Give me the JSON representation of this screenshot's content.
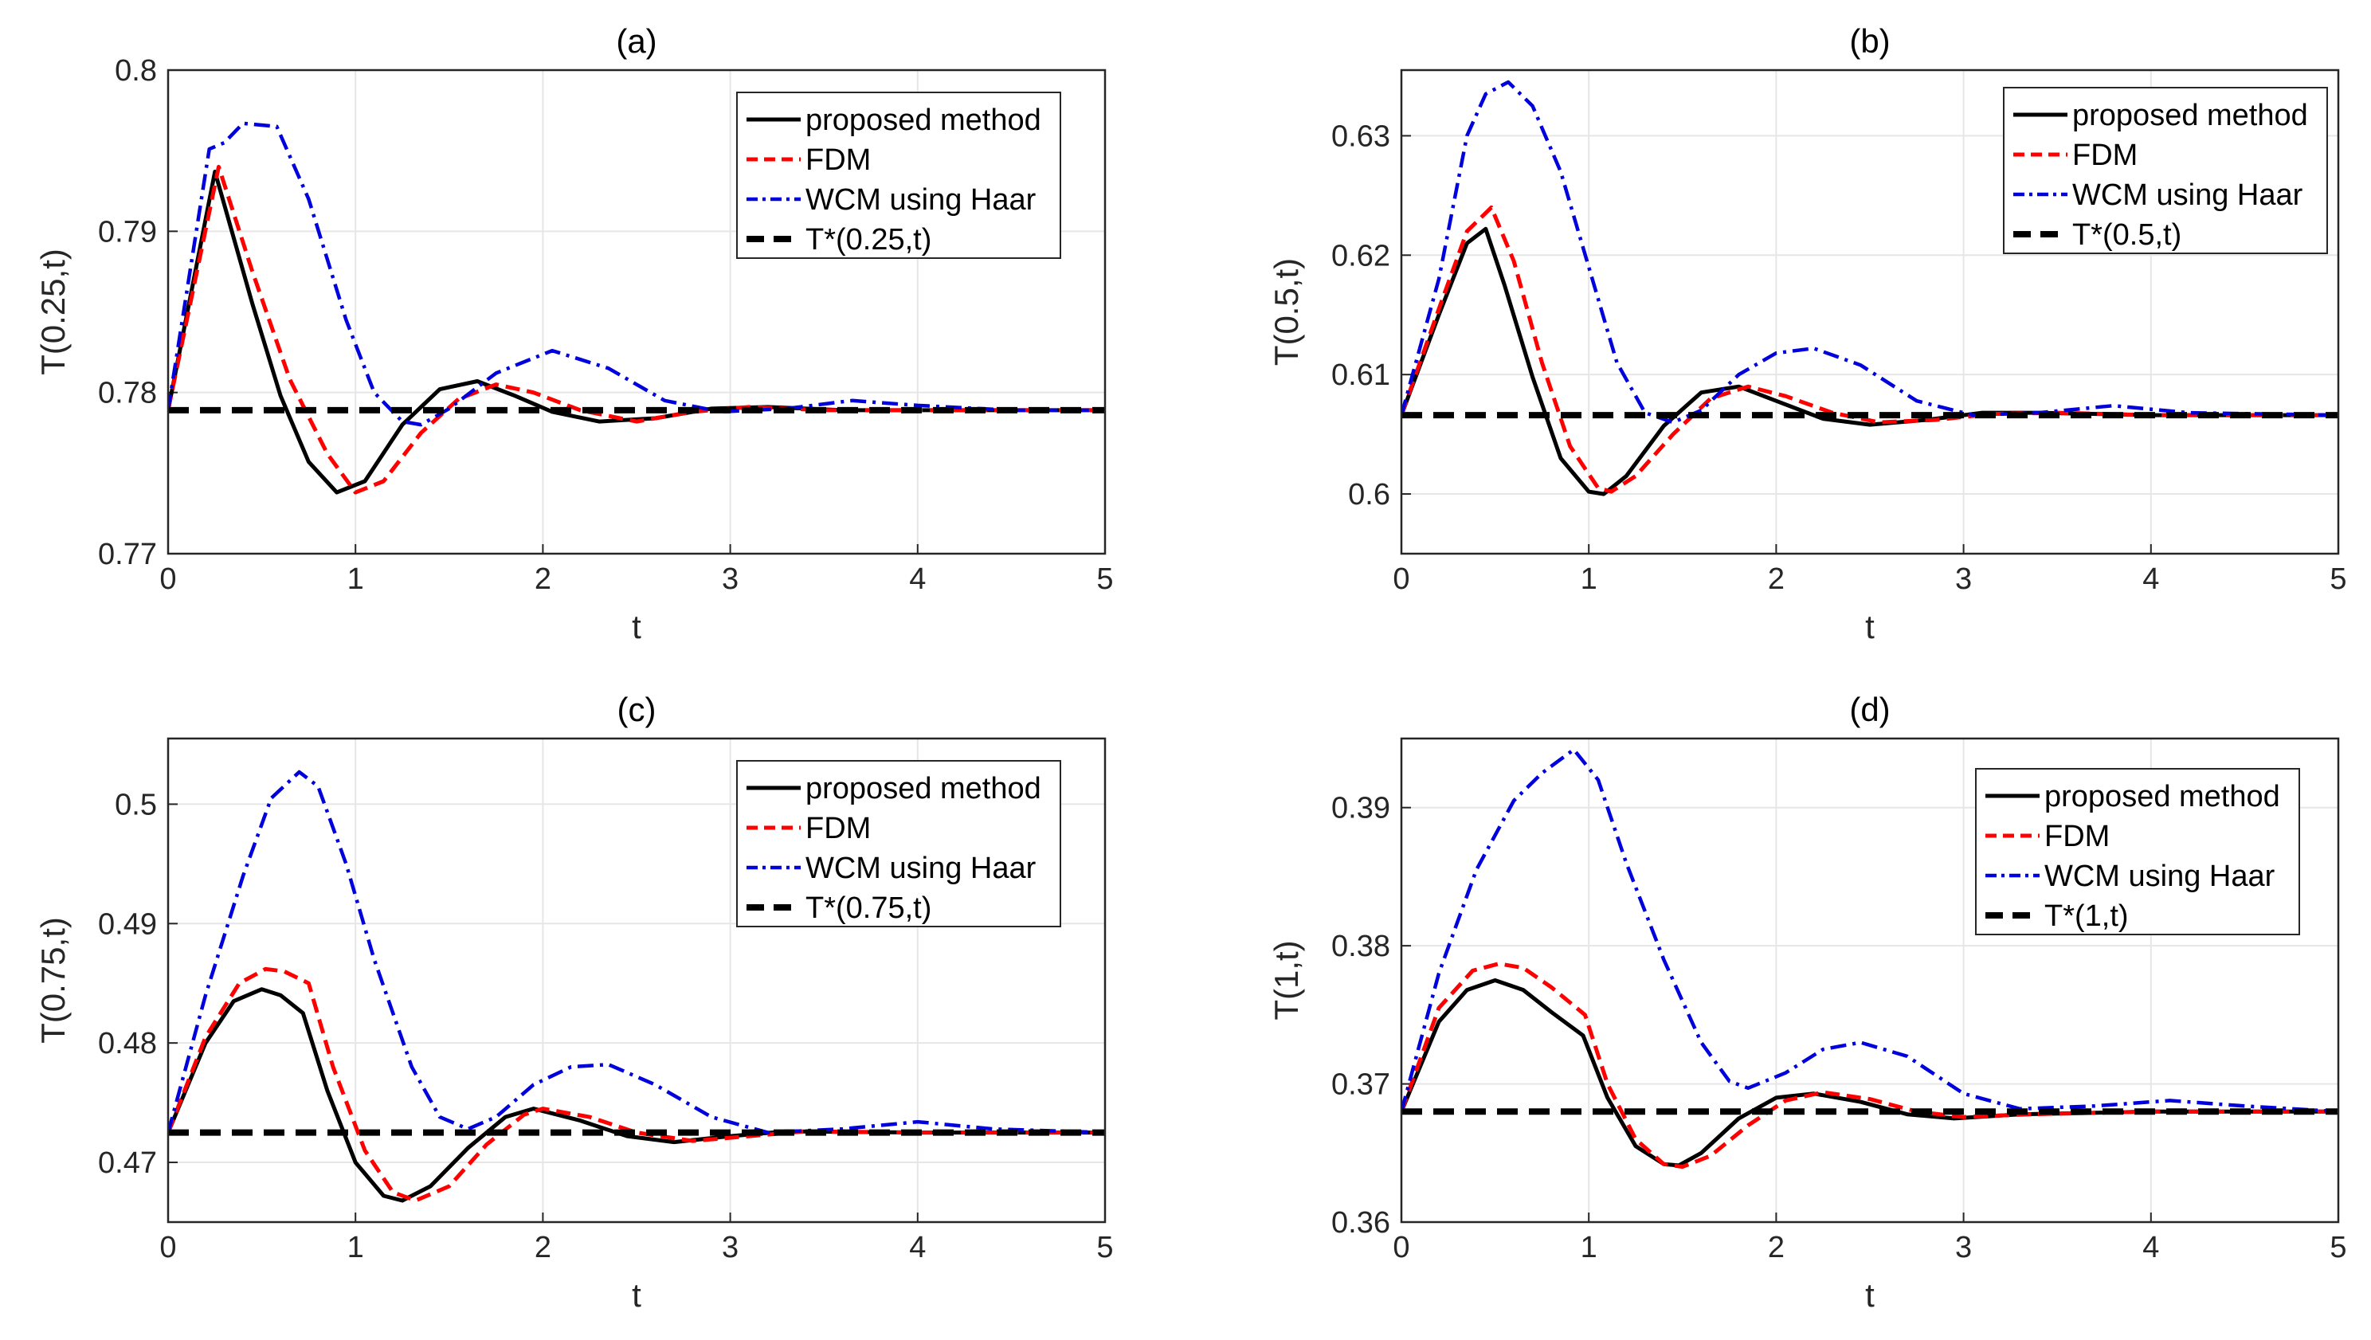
{
  "chart_data": [
    {
      "type": "line",
      "panel": "a",
      "title": "(a)",
      "xlabel": "t",
      "ylabel": "T(0.25,t)",
      "xlim": [
        0,
        5
      ],
      "ylim": [
        0.77,
        0.8
      ],
      "xticks": [
        "0",
        "1",
        "2",
        "3",
        "4",
        "5"
      ],
      "yticks": [
        "0.77",
        "0.78",
        "0.79",
        "0.8"
      ],
      "grid": true,
      "legend_position": "top-right",
      "series": [
        {
          "name": "proposed method",
          "color": "#000000",
          "style": "solid",
          "x": [
            0,
            0.25,
            0.45,
            0.6,
            0.75,
            0.9,
            1.05,
            1.25,
            1.45,
            1.65,
            1.85,
            2.05,
            2.3,
            2.6,
            2.9,
            3.2,
            3.6,
            4.0,
            5.0
          ],
          "y": [
            0.7789,
            0.7937,
            0.7855,
            0.7798,
            0.7757,
            0.7738,
            0.7745,
            0.778,
            0.7802,
            0.7807,
            0.7798,
            0.7788,
            0.7782,
            0.7784,
            0.779,
            0.7791,
            0.7789,
            0.7789,
            0.7789
          ]
        },
        {
          "name": "FDM",
          "color": "#ff0000",
          "style": "dashed",
          "x": [
            0,
            0.27,
            0.45,
            0.65,
            0.85,
            1.0,
            1.15,
            1.35,
            1.55,
            1.75,
            1.95,
            2.2,
            2.5,
            2.8,
            3.1,
            3.5,
            4.0,
            5.0
          ],
          "y": [
            0.7789,
            0.794,
            0.7875,
            0.7808,
            0.7762,
            0.7738,
            0.7745,
            0.7775,
            0.7796,
            0.7805,
            0.78,
            0.7789,
            0.7782,
            0.7788,
            0.7791,
            0.7789,
            0.7789,
            0.7789
          ]
        },
        {
          "name": "WCM using Haar",
          "color": "#0000dd",
          "style": "dashdot",
          "x": [
            0,
            0.22,
            0.3,
            0.4,
            0.58,
            0.75,
            0.95,
            1.1,
            1.25,
            1.35,
            1.5,
            1.75,
            2.05,
            2.35,
            2.65,
            2.95,
            3.3,
            3.65,
            4.0,
            4.5,
            5.0
          ],
          "y": [
            0.7789,
            0.7951,
            0.7955,
            0.7967,
            0.7965,
            0.792,
            0.7845,
            0.78,
            0.7782,
            0.778,
            0.779,
            0.7812,
            0.7826,
            0.7815,
            0.7795,
            0.7788,
            0.779,
            0.7795,
            0.7792,
            0.7789,
            0.7789
          ]
        },
        {
          "name": "T*(0.25,t)",
          "color": "#000000",
          "style": "bigdash",
          "x": [
            0,
            5
          ],
          "y": [
            0.7789,
            0.7789
          ]
        }
      ]
    },
    {
      "type": "line",
      "panel": "b",
      "title": "(b)",
      "xlabel": "t",
      "ylabel": "T(0.5,t)",
      "xlim": [
        0,
        5
      ],
      "ylim": [
        0.595,
        0.6355
      ],
      "xticks": [
        "0",
        "1",
        "2",
        "3",
        "4",
        "5"
      ],
      "yticks": [
        "0.6",
        "0.61",
        "0.62",
        "0.63"
      ],
      "ytick_values": [
        0.6,
        0.61,
        0.62,
        0.63
      ],
      "grid": true,
      "legend_position": "top-right",
      "series": [
        {
          "name": "proposed method",
          "color": "#000000",
          "style": "solid",
          "x": [
            0,
            0.2,
            0.35,
            0.45,
            0.55,
            0.7,
            0.85,
            1.0,
            1.08,
            1.2,
            1.4,
            1.6,
            1.8,
            2.0,
            2.25,
            2.5,
            2.8,
            3.1,
            3.4,
            4.0,
            5.0
          ],
          "y": [
            0.6066,
            0.615,
            0.621,
            0.6222,
            0.6175,
            0.6098,
            0.603,
            0.6002,
            0.6,
            0.6015,
            0.6057,
            0.6085,
            0.609,
            0.6078,
            0.6063,
            0.6058,
            0.6062,
            0.6068,
            0.6068,
            0.6066,
            0.6066
          ]
        },
        {
          "name": "FDM",
          "color": "#ff0000",
          "style": "dashed",
          "x": [
            0,
            0.2,
            0.35,
            0.48,
            0.6,
            0.75,
            0.9,
            1.05,
            1.12,
            1.25,
            1.45,
            1.65,
            1.85,
            2.05,
            2.3,
            2.55,
            2.85,
            3.15,
            3.5,
            4.0,
            5.0
          ],
          "y": [
            0.6066,
            0.6155,
            0.622,
            0.624,
            0.6195,
            0.611,
            0.604,
            0.6005,
            0.6002,
            0.6015,
            0.605,
            0.608,
            0.609,
            0.6082,
            0.6068,
            0.606,
            0.6062,
            0.6067,
            0.6068,
            0.6066,
            0.6066
          ]
        },
        {
          "name": "WCM using Haar",
          "color": "#0000dd",
          "style": "dashdot",
          "x": [
            0,
            0.2,
            0.35,
            0.45,
            0.57,
            0.7,
            0.85,
            1.0,
            1.15,
            1.3,
            1.45,
            1.6,
            1.8,
            2.0,
            2.2,
            2.45,
            2.75,
            3.05,
            3.4,
            3.8,
            4.2,
            5.0
          ],
          "y": [
            0.6066,
            0.618,
            0.63,
            0.6335,
            0.6345,
            0.6325,
            0.627,
            0.619,
            0.611,
            0.6068,
            0.606,
            0.607,
            0.61,
            0.6118,
            0.6122,
            0.6108,
            0.6078,
            0.6066,
            0.6068,
            0.6074,
            0.6068,
            0.6066
          ]
        },
        {
          "name": "T*(0.5,t)",
          "color": "#000000",
          "style": "bigdash",
          "x": [
            0,
            5
          ],
          "y": [
            0.6066,
            0.6066
          ]
        }
      ]
    },
    {
      "type": "line",
      "panel": "c",
      "title": "(c)",
      "xlabel": "t",
      "ylabel": "T(0.75,t)",
      "xlim": [
        0,
        5
      ],
      "ylim": [
        0.465,
        0.5055
      ],
      "xticks": [
        "0",
        "1",
        "2",
        "3",
        "4",
        "5"
      ],
      "yticks": [
        "0.47",
        "0.48",
        "0.49",
        "0.5"
      ],
      "ytick_values": [
        0.47,
        0.48,
        0.49,
        0.5
      ],
      "grid": true,
      "legend_position": "top-right",
      "series": [
        {
          "name": "proposed method",
          "color": "#000000",
          "style": "solid",
          "x": [
            0,
            0.2,
            0.35,
            0.5,
            0.6,
            0.72,
            0.85,
            1.0,
            1.15,
            1.25,
            1.4,
            1.6,
            1.8,
            1.95,
            2.2,
            2.45,
            2.7,
            3.0,
            3.3,
            4.0,
            5.0
          ],
          "y": [
            0.4725,
            0.48,
            0.4835,
            0.4845,
            0.484,
            0.4825,
            0.476,
            0.47,
            0.4672,
            0.4668,
            0.468,
            0.4712,
            0.4738,
            0.4745,
            0.4735,
            0.4722,
            0.4717,
            0.4722,
            0.4726,
            0.4725,
            0.4725
          ]
        },
        {
          "name": "FDM",
          "color": "#ff0000",
          "style": "dashed",
          "x": [
            0,
            0.2,
            0.38,
            0.52,
            0.62,
            0.75,
            0.88,
            1.05,
            1.2,
            1.32,
            1.5,
            1.7,
            1.9,
            2.0,
            2.25,
            2.5,
            2.8,
            3.1,
            3.4,
            4.0,
            5.0
          ],
          "y": [
            0.4725,
            0.4805,
            0.485,
            0.4862,
            0.486,
            0.485,
            0.478,
            0.471,
            0.4675,
            0.4668,
            0.468,
            0.4715,
            0.474,
            0.4745,
            0.4738,
            0.4725,
            0.4718,
            0.4722,
            0.4726,
            0.4725,
            0.4725
          ]
        },
        {
          "name": "WCM using Haar",
          "color": "#0000dd",
          "style": "dashdot",
          "x": [
            0,
            0.2,
            0.4,
            0.55,
            0.7,
            0.8,
            0.95,
            1.1,
            1.3,
            1.45,
            1.6,
            1.75,
            1.95,
            2.15,
            2.35,
            2.6,
            2.9,
            3.2,
            3.6,
            4.0,
            4.4,
            5.0
          ],
          "y": [
            0.4725,
            0.484,
            0.494,
            0.5005,
            0.5027,
            0.5015,
            0.495,
            0.487,
            0.478,
            0.4738,
            0.4728,
            0.4738,
            0.4765,
            0.478,
            0.4782,
            0.4765,
            0.4738,
            0.4725,
            0.4728,
            0.4734,
            0.4728,
            0.4725
          ]
        },
        {
          "name": "T*(0.75,t)",
          "color": "#000000",
          "style": "bigdash",
          "x": [
            0,
            5
          ],
          "y": [
            0.4725,
            0.4725
          ]
        }
      ]
    },
    {
      "type": "line",
      "panel": "d",
      "title": "(d)",
      "xlabel": "t",
      "ylabel": "T(1,t)",
      "xlim": [
        0,
        5
      ],
      "ylim": [
        0.36,
        0.395
      ],
      "xticks": [
        "0",
        "1",
        "2",
        "3",
        "4",
        "5"
      ],
      "yticks": [
        "0.36",
        "0.37",
        "0.38",
        "0.39"
      ],
      "ytick_values": [
        0.36,
        0.37,
        0.38,
        0.39
      ],
      "grid": true,
      "legend_position": "top-right",
      "series": [
        {
          "name": "proposed method",
          "color": "#000000",
          "style": "solid",
          "x": [
            0,
            0.2,
            0.35,
            0.5,
            0.65,
            0.8,
            0.97,
            1.1,
            1.25,
            1.4,
            1.48,
            1.6,
            1.8,
            2.0,
            2.2,
            2.45,
            2.7,
            2.95,
            3.3,
            4.0,
            5.0
          ],
          "y": [
            0.368,
            0.3745,
            0.3768,
            0.3775,
            0.3768,
            0.3752,
            0.3735,
            0.369,
            0.3655,
            0.3642,
            0.3641,
            0.365,
            0.3675,
            0.369,
            0.3693,
            0.3687,
            0.3678,
            0.3675,
            0.3678,
            0.368,
            0.368
          ]
        },
        {
          "name": "FDM",
          "color": "#ff0000",
          "style": "dashed",
          "x": [
            0,
            0.2,
            0.38,
            0.52,
            0.65,
            0.8,
            0.98,
            1.1,
            1.25,
            1.4,
            1.5,
            1.65,
            1.85,
            2.05,
            2.25,
            2.5,
            2.75,
            3.0,
            3.35,
            4.0,
            5.0
          ],
          "y": [
            0.368,
            0.3755,
            0.3782,
            0.3787,
            0.3784,
            0.377,
            0.375,
            0.37,
            0.366,
            0.3642,
            0.364,
            0.3648,
            0.367,
            0.3688,
            0.3694,
            0.3689,
            0.368,
            0.3676,
            0.3678,
            0.368,
            0.368
          ]
        },
        {
          "name": "WCM using Haar",
          "color": "#0000dd",
          "style": "dashdot",
          "x": [
            0,
            0.2,
            0.4,
            0.6,
            0.75,
            0.92,
            1.05,
            1.2,
            1.4,
            1.6,
            1.75,
            1.85,
            2.05,
            2.25,
            2.45,
            2.7,
            3.0,
            3.3,
            3.7,
            4.1,
            4.5,
            5.0
          ],
          "y": [
            0.368,
            0.378,
            0.3855,
            0.3905,
            0.3925,
            0.3942,
            0.392,
            0.386,
            0.379,
            0.373,
            0.3702,
            0.3697,
            0.3708,
            0.3725,
            0.373,
            0.372,
            0.3693,
            0.3682,
            0.3684,
            0.3688,
            0.3684,
            0.368
          ]
        },
        {
          "name": "T*(1,t)",
          "color": "#000000",
          "style": "bigdash",
          "x": [
            0,
            5
          ],
          "y": [
            0.368,
            0.368
          ]
        }
      ]
    }
  ]
}
